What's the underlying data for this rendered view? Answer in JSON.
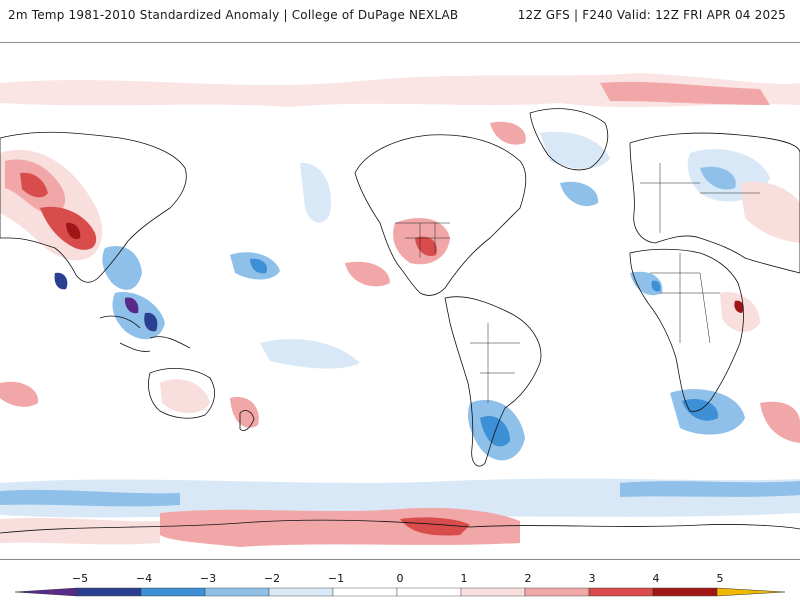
{
  "header": {
    "title": "2m Temp 1981-2010 Standardized Anomaly | College of DuPage NEXLAB",
    "run_info": "12Z GFS | F240 Valid: 12Z FRI APR 04 2025"
  },
  "colorbar": {
    "tick_labels": [
      "−5",
      "−4",
      "−3",
      "−2",
      "−1",
      "0",
      "1",
      "2",
      "3",
      "4",
      "5"
    ],
    "colors": {
      "m5": "#5a2a8a",
      "m4": "#2a3f8f",
      "m3": "#3d8fd6",
      "m2": "#8fc0ea",
      "m1": "#d8e8f6",
      "z": "#ffffff",
      "p1": "#f9dede",
      "p2": "#f1a7a7",
      "p3": "#d84c4c",
      "p4": "#a01616",
      "p5": "#600606",
      "over": "#f0b800"
    }
  }
}
